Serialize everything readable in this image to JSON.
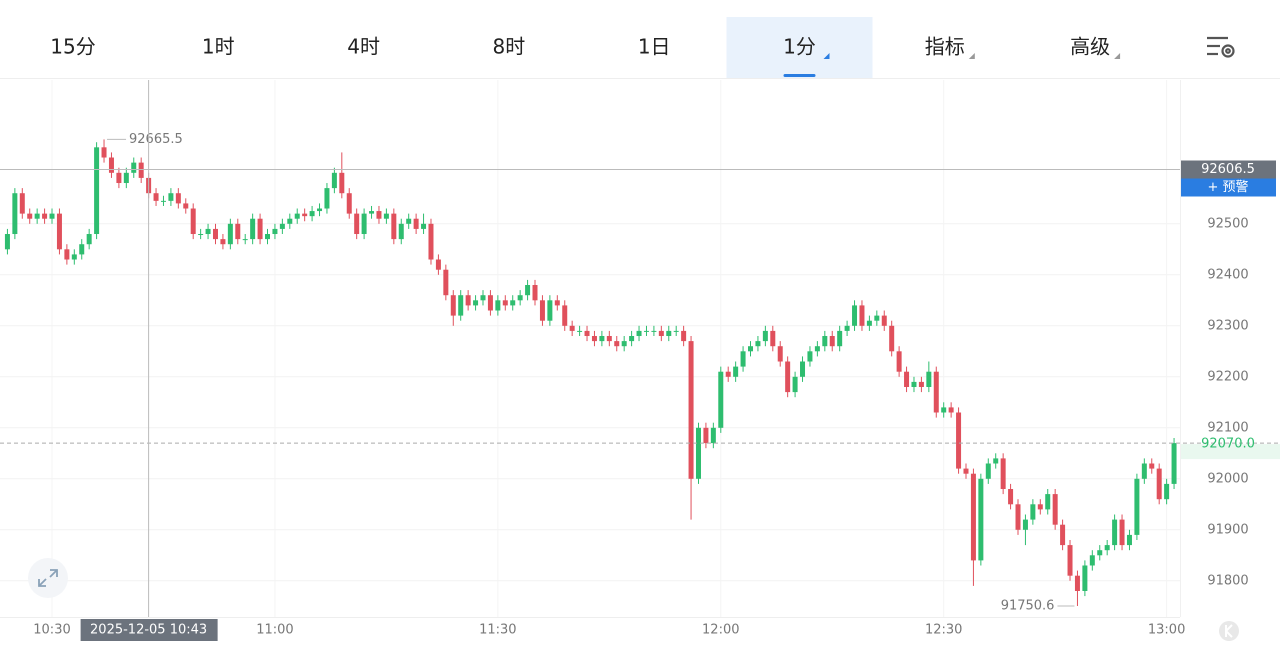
{
  "tabs": [
    "15分",
    "1时",
    "4时",
    "8时",
    "1日",
    "1分",
    "指标",
    "高级"
  ],
  "active_tab": 5,
  "dropdown_tabs": [
    5,
    6,
    7
  ],
  "chart_data": {
    "type": "candlestick",
    "up_color": "#2ebd6f",
    "down_color": "#e0505c",
    "xlim": [
      23,
      181.8
    ],
    "xticks": [
      {
        "value": 30,
        "label": "10:30"
      },
      {
        "value": 60,
        "label": "11:00"
      },
      {
        "value": 90,
        "label": "11:30"
      },
      {
        "value": 120,
        "label": "12:00"
      },
      {
        "value": 150,
        "label": "12:30"
      },
      {
        "value": 180,
        "label": "13:00"
      }
    ],
    "ylim": [
      91729,
      92782
    ],
    "yticks": [
      91800,
      91900,
      92000,
      92100,
      92200,
      92300,
      92400,
      92500
    ],
    "grid": true,
    "crosshair": {
      "x": 43,
      "x_label": "2025-12-05 10:43",
      "y": 92606.5
    },
    "alert_button": "+ 预警",
    "last_price": {
      "value": 92070,
      "label": "92070.0"
    },
    "high_label": "92665.5",
    "low_label": "91750.6",
    "x": [
      24,
      25,
      26,
      27,
      28,
      29,
      30,
      31,
      32,
      33,
      34,
      35,
      36,
      37,
      38,
      39,
      40,
      41,
      42,
      43,
      44,
      45,
      46,
      47,
      48,
      49,
      50,
      51,
      52,
      53,
      54,
      55,
      56,
      57,
      58,
      59,
      60,
      61,
      62,
      63,
      64,
      65,
      66,
      67,
      68,
      69,
      70,
      71,
      72,
      73,
      74,
      75,
      76,
      77,
      78,
      79,
      80,
      81,
      82,
      83,
      84,
      85,
      86,
      87,
      88,
      89,
      90,
      91,
      92,
      93,
      94,
      95,
      96,
      97,
      98,
      99,
      100,
      101,
      102,
      103,
      104,
      105,
      106,
      107,
      108,
      109,
      110,
      111,
      112,
      113,
      114,
      115,
      116,
      117,
      118,
      119,
      120,
      121,
      122,
      123,
      124,
      125,
      126,
      127,
      128,
      129,
      130,
      131,
      132,
      133,
      134,
      135,
      136,
      137,
      138,
      139,
      140,
      141,
      142,
      143,
      144,
      145,
      146,
      147,
      148,
      149,
      150,
      151,
      152,
      153,
      154,
      155,
      156,
      157,
      158,
      159,
      160,
      161,
      162,
      163,
      164,
      165,
      166,
      167,
      168,
      169,
      170,
      171,
      172,
      173,
      174,
      175,
      176,
      177,
      178,
      179,
      180,
      181
    ],
    "ohlc": [
      [
        92450,
        92490,
        92440,
        92480
      ],
      [
        92480,
        92570,
        92470,
        92560
      ],
      [
        92560,
        92570,
        92510,
        92520
      ],
      [
        92520,
        92530,
        92500,
        92510
      ],
      [
        92510,
        92530,
        92500,
        92520
      ],
      [
        92520,
        92530,
        92500,
        92510
      ],
      [
        92510,
        92530,
        92500,
        92520
      ],
      [
        92520,
        92530,
        92440,
        92450
      ],
      [
        92450,
        92460,
        92420,
        92430
      ],
      [
        92430,
        92450,
        92420,
        92440
      ],
      [
        92440,
        92470,
        92430,
        92460
      ],
      [
        92460,
        92490,
        92450,
        92480
      ],
      [
        92480,
        92660,
        92470,
        92650
      ],
      [
        92650,
        92665.5,
        92620,
        92630
      ],
      [
        92630,
        92640,
        92590,
        92600
      ],
      [
        92600,
        92610,
        92570,
        92580
      ],
      [
        92580,
        92610,
        92570,
        92600
      ],
      [
        92600,
        92630,
        92590,
        92620
      ],
      [
        92620,
        92630,
        92580,
        92590
      ],
      [
        92590,
        92600,
        92550,
        92560
      ],
      [
        92560,
        92570,
        92535,
        92545
      ],
      [
        92545,
        92555,
        92535,
        92545
      ],
      [
        92545,
        92570,
        92535,
        92560
      ],
      [
        92560,
        92570,
        92530,
        92540
      ],
      [
        92540,
        92550,
        92520,
        92530
      ],
      [
        92530,
        92540,
        92470,
        92480
      ],
      [
        92480,
        92490,
        92470,
        92480
      ],
      [
        92480,
        92500,
        92470,
        92490
      ],
      [
        92490,
        92500,
        92460,
        92470
      ],
      [
        92470,
        92480,
        92450,
        92460
      ],
      [
        92460,
        92510,
        92450,
        92500
      ],
      [
        92500,
        92510,
        92460,
        92470
      ],
      [
        92470,
        92480,
        92460,
        92470
      ],
      [
        92470,
        92520,
        92460,
        92510
      ],
      [
        92510,
        92520,
        92460,
        92470
      ],
      [
        92470,
        92490,
        92460,
        92480
      ],
      [
        92480,
        92500,
        92470,
        92490
      ],
      [
        92490,
        92510,
        92480,
        92500
      ],
      [
        92500,
        92520,
        92490,
        92510
      ],
      [
        92510,
        92530,
        92500,
        92520
      ],
      [
        92520,
        92530,
        92505,
        92515
      ],
      [
        92515,
        92535,
        92505,
        92525
      ],
      [
        92525,
        92540,
        92515,
        92530
      ],
      [
        92530,
        92580,
        92520,
        92570
      ],
      [
        92570,
        92610,
        92560,
        92600
      ],
      [
        92600,
        92640,
        92550,
        92560
      ],
      [
        92560,
        92570,
        92510,
        92520
      ],
      [
        92520,
        92530,
        92470,
        92480
      ],
      [
        92480,
        92530,
        92470,
        92520
      ],
      [
        92520,
        92535,
        92510,
        92525
      ],
      [
        92525,
        92535,
        92500,
        92510
      ],
      [
        92510,
        92530,
        92500,
        92520
      ],
      [
        92520,
        92530,
        92460,
        92470
      ],
      [
        92470,
        92510,
        92460,
        92500
      ],
      [
        92500,
        92520,
        92490,
        92510
      ],
      [
        92510,
        92520,
        92480,
        92490
      ],
      [
        92490,
        92520,
        92480,
        92500
      ],
      [
        92500,
        92510,
        92420,
        92430
      ],
      [
        92430,
        92440,
        92400,
        92410
      ],
      [
        92410,
        92420,
        92350,
        92360
      ],
      [
        92360,
        92370,
        92300,
        92320
      ],
      [
        92320,
        92370,
        92310,
        92360
      ],
      [
        92360,
        92370,
        92330,
        92340
      ],
      [
        92340,
        92360,
        92330,
        92350
      ],
      [
        92350,
        92370,
        92340,
        92360
      ],
      [
        92360,
        92370,
        92320,
        92330
      ],
      [
        92330,
        92360,
        92320,
        92350
      ],
      [
        92350,
        92360,
        92330,
        92340
      ],
      [
        92340,
        92360,
        92330,
        92350
      ],
      [
        92350,
        92370,
        92340,
        92360
      ],
      [
        92360,
        92390,
        92350,
        92380
      ],
      [
        92380,
        92390,
        92340,
        92350
      ],
      [
        92350,
        92360,
        92300,
        92310
      ],
      [
        92310,
        92360,
        92300,
        92350
      ],
      [
        92350,
        92360,
        92330,
        92340
      ],
      [
        92340,
        92350,
        92290,
        92300
      ],
      [
        92300,
        92310,
        92280,
        92290
      ],
      [
        92290,
        92300,
        92280,
        92290
      ],
      [
        92290,
        92300,
        92270,
        92280
      ],
      [
        92280,
        92290,
        92260,
        92270
      ],
      [
        92270,
        92290,
        92260,
        92280
      ],
      [
        92280,
        92290,
        92260,
        92270
      ],
      [
        92270,
        92280,
        92250,
        92260
      ],
      [
        92260,
        92280,
        92250,
        92270
      ],
      [
        92270,
        92290,
        92260,
        92280
      ],
      [
        92280,
        92300,
        92270,
        92290
      ],
      [
        92290,
        92300,
        92280,
        92290
      ],
      [
        92290,
        92300,
        92280,
        92290
      ],
      [
        92290,
        92300,
        92270,
        92280
      ],
      [
        92280,
        92300,
        92270,
        92290
      ],
      [
        92290,
        92300,
        92280,
        92290
      ],
      [
        92290,
        92300,
        92260,
        92270
      ],
      [
        92270,
        92280,
        91920,
        92000
      ],
      [
        92000,
        92110,
        91990,
        92100
      ],
      [
        92100,
        92110,
        92060,
        92070
      ],
      [
        92070,
        92110,
        92060,
        92100
      ],
      [
        92100,
        92220,
        92090,
        92210
      ],
      [
        92210,
        92220,
        92190,
        92200
      ],
      [
        92200,
        92230,
        92190,
        92220
      ],
      [
        92220,
        92260,
        92210,
        92250
      ],
      [
        92250,
        92270,
        92240,
        92260
      ],
      [
        92260,
        92280,
        92250,
        92270
      ],
      [
        92270,
        92300,
        92260,
        92290
      ],
      [
        92290,
        92300,
        92250,
        92260
      ],
      [
        92260,
        92270,
        92220,
        92230
      ],
      [
        92230,
        92240,
        92160,
        92170
      ],
      [
        92170,
        92210,
        92160,
        92200
      ],
      [
        92200,
        92240,
        92190,
        92230
      ],
      [
        92230,
        92260,
        92220,
        92250
      ],
      [
        92250,
        92270,
        92240,
        92260
      ],
      [
        92260,
        92290,
        92250,
        92280
      ],
      [
        92280,
        92290,
        92250,
        92260
      ],
      [
        92260,
        92300,
        92250,
        92290
      ],
      [
        92290,
        92310,
        92280,
        92300
      ],
      [
        92300,
        92350,
        92290,
        92340
      ],
      [
        92340,
        92350,
        92290,
        92300
      ],
      [
        92300,
        92320,
        92290,
        92310
      ],
      [
        92310,
        92330,
        92300,
        92320
      ],
      [
        92320,
        92330,
        92290,
        92300
      ],
      [
        92300,
        92310,
        92240,
        92250
      ],
      [
        92250,
        92260,
        92200,
        92210
      ],
      [
        92210,
        92220,
        92170,
        92180
      ],
      [
        92180,
        92200,
        92170,
        92190
      ],
      [
        92190,
        92200,
        92170,
        92180
      ],
      [
        92180,
        92230,
        92170,
        92210
      ],
      [
        92210,
        92220,
        92120,
        92130
      ],
      [
        92130,
        92150,
        92120,
        92140
      ],
      [
        92140,
        92150,
        92120,
        92130
      ],
      [
        92130,
        92140,
        92010,
        92020
      ],
      [
        92020,
        92030,
        92000,
        92010
      ],
      [
        92010,
        92020,
        91790,
        91840
      ],
      [
        91840,
        92010,
        91830,
        92000
      ],
      [
        92000,
        92040,
        91990,
        92030
      ],
      [
        92030,
        92050,
        92020,
        92040
      ],
      [
        92040,
        92050,
        91970,
        91980
      ],
      [
        91980,
        91990,
        91940,
        91950
      ],
      [
        91950,
        91960,
        91890,
        91900
      ],
      [
        91900,
        91930,
        91870,
        91920
      ],
      [
        91920,
        91960,
        91910,
        91950
      ],
      [
        91950,
        91960,
        91930,
        91940
      ],
      [
        91940,
        91980,
        91930,
        91970
      ],
      [
        91970,
        91980,
        91900,
        91910
      ],
      [
        91910,
        91920,
        91860,
        91870
      ],
      [
        91870,
        91880,
        91800,
        91810
      ],
      [
        91810,
        91820,
        91750.6,
        91780
      ],
      [
        91780,
        91840,
        91770,
        91830
      ],
      [
        91830,
        91860,
        91820,
        91850
      ],
      [
        91850,
        91870,
        91840,
        91860
      ],
      [
        91860,
        91880,
        91850,
        91870
      ],
      [
        91870,
        91930,
        91860,
        91920
      ],
      [
        91920,
        91930,
        91860,
        91870
      ],
      [
        91870,
        91900,
        91860,
        91890
      ],
      [
        91890,
        92010,
        91880,
        92000
      ],
      [
        92000,
        92040,
        91990,
        92030
      ],
      [
        92030,
        92040,
        92010,
        92020
      ],
      [
        92020,
        92030,
        91950,
        91960
      ],
      [
        91960,
        92000,
        91950,
        91990
      ],
      [
        91990,
        92080,
        91980,
        92070
      ]
    ]
  }
}
